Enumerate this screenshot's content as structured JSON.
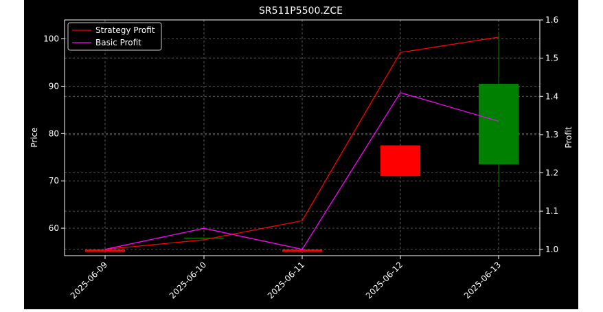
{
  "chart_data": {
    "type": "candlestick+line",
    "title": "SR511P5500.ZCE",
    "xlabel": "",
    "ylabel_left": "Price",
    "ylabel_right": "Profit",
    "categories": [
      "2025-06-09",
      "2025-06-10",
      "2025-06-11",
      "2025-06-12",
      "2025-06-13"
    ],
    "ylim_left": [
      54.2,
      104.0
    ],
    "ylim_right": [
      0.9835,
      1.6
    ],
    "yticks_left": [
      60,
      70,
      80,
      90,
      100
    ],
    "yticks_right": [
      1.0,
      1.1,
      1.2,
      1.3,
      1.4,
      1.5,
      1.6
    ],
    "grid": true,
    "legend_position": "top-left",
    "candles": [
      {
        "date": "2025-06-09",
        "open": 55.5,
        "close": 55.0,
        "high": 55.5,
        "low": 55.0
      },
      {
        "date": "2025-06-10",
        "open": 58.0,
        "close": 58.0,
        "high": 58.0,
        "low": 58.0
      },
      {
        "date": "2025-06-11",
        "open": 55.5,
        "close": 55.0,
        "high": 55.5,
        "low": 55.0
      },
      {
        "date": "2025-06-12",
        "open": 77.5,
        "close": 71.0,
        "high": 77.5,
        "low": 71.0
      },
      {
        "date": "2025-06-13",
        "open": 73.5,
        "close": 90.5,
        "high": 101.5,
        "low": 69.0
      }
    ],
    "series": [
      {
        "name": "Strategy Profit",
        "color": "#ff0000",
        "values": [
          1.0,
          1.025,
          1.075,
          1.515,
          1.555
        ]
      },
      {
        "name": "Basic Profit",
        "color": "#ff00ff",
        "values": [
          1.0,
          1.055,
          1.0,
          1.41,
          1.335
        ]
      }
    ],
    "colors": {
      "up": "#008000",
      "down": "#ff0000",
      "background": "#000000",
      "text": "#ffffff"
    }
  }
}
